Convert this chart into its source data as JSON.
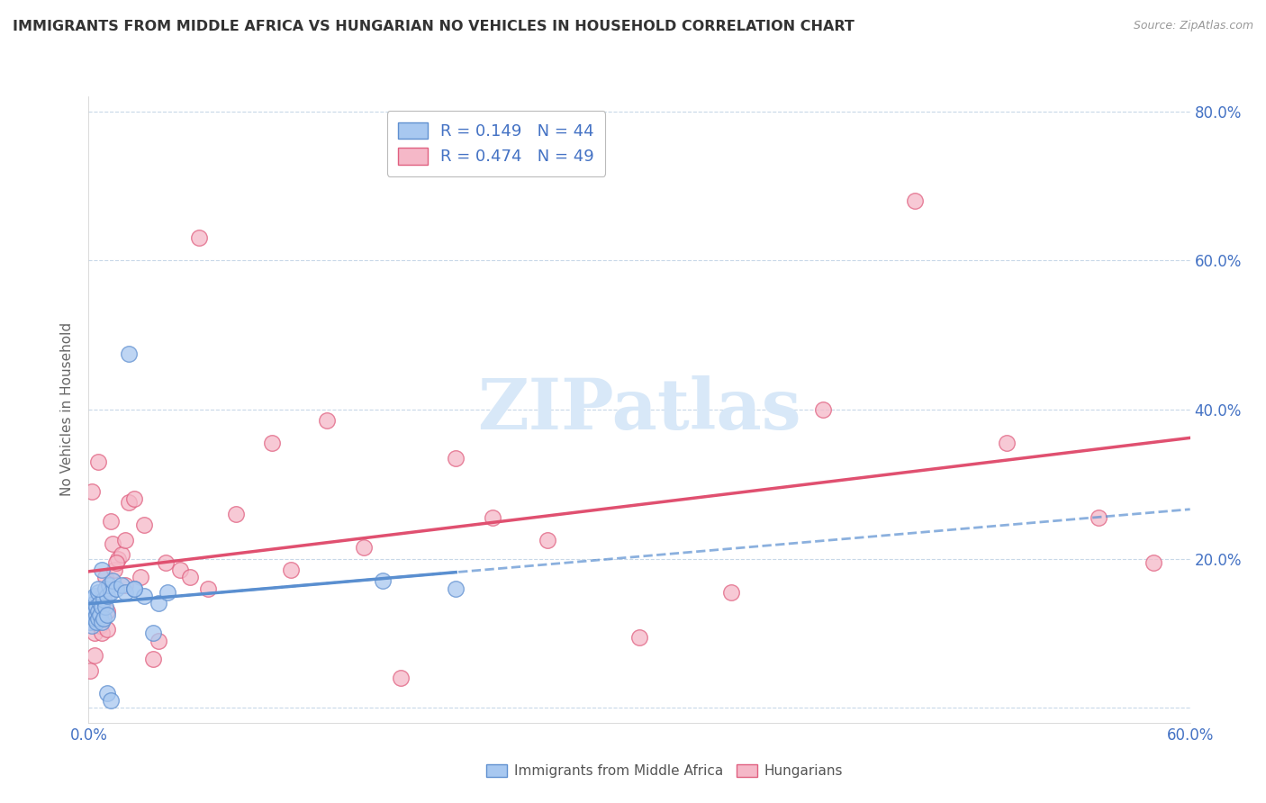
{
  "title": "IMMIGRANTS FROM MIDDLE AFRICA VS HUNGARIAN NO VEHICLES IN HOUSEHOLD CORRELATION CHART",
  "source": "Source: ZipAtlas.com",
  "ylabel": "No Vehicles in Household",
  "xlim": [
    0.0,
    0.6
  ],
  "ylim": [
    -0.02,
    0.82
  ],
  "xticks": [
    0.0,
    0.1,
    0.2,
    0.3,
    0.4,
    0.5,
    0.6
  ],
  "yticks": [
    0.0,
    0.2,
    0.4,
    0.6,
    0.8
  ],
  "xtick_labels": [
    "0.0%",
    "",
    "",
    "",
    "",
    "",
    "60.0%"
  ],
  "ytick_labels_right": [
    "",
    "20.0%",
    "40.0%",
    "60.0%",
    "80.0%"
  ],
  "blue_label": "Immigrants from Middle Africa",
  "pink_label": "Hungarians",
  "blue_R": "0.149",
  "blue_N": "44",
  "pink_R": "0.474",
  "pink_N": "49",
  "blue_color": "#a8c8f0",
  "pink_color": "#f5b8c8",
  "blue_edge_color": "#6090d0",
  "pink_edge_color": "#e06080",
  "blue_line_color": "#5a8fd0",
  "pink_line_color": "#e05070",
  "watermark_color": "#d8e8f8",
  "title_color": "#333333",
  "axis_label_color": "#4472c4",
  "grid_color": "#c8d8e8",
  "blue_scatter_x": [
    0.001,
    0.001,
    0.001,
    0.002,
    0.002,
    0.002,
    0.003,
    0.003,
    0.003,
    0.004,
    0.004,
    0.004,
    0.005,
    0.005,
    0.005,
    0.006,
    0.006,
    0.007,
    0.007,
    0.008,
    0.008,
    0.009,
    0.009,
    0.01,
    0.01,
    0.011,
    0.012,
    0.013,
    0.015,
    0.018,
    0.02,
    0.022,
    0.025,
    0.03,
    0.035,
    0.038,
    0.043,
    0.16,
    0.025,
    0.01,
    0.005,
    0.007,
    0.012,
    0.2
  ],
  "blue_scatter_y": [
    0.125,
    0.135,
    0.115,
    0.13,
    0.145,
    0.11,
    0.12,
    0.14,
    0.15,
    0.125,
    0.135,
    0.115,
    0.13,
    0.12,
    0.155,
    0.14,
    0.125,
    0.135,
    0.115,
    0.145,
    0.12,
    0.135,
    0.16,
    0.15,
    0.125,
    0.165,
    0.155,
    0.17,
    0.16,
    0.165,
    0.155,
    0.475,
    0.16,
    0.15,
    0.1,
    0.14,
    0.155,
    0.17,
    0.16,
    0.02,
    0.16,
    0.185,
    0.01,
    0.16
  ],
  "pink_scatter_x": [
    0.001,
    0.002,
    0.003,
    0.003,
    0.004,
    0.005,
    0.005,
    0.006,
    0.007,
    0.008,
    0.009,
    0.01,
    0.01,
    0.012,
    0.013,
    0.014,
    0.016,
    0.018,
    0.02,
    0.022,
    0.025,
    0.028,
    0.03,
    0.035,
    0.038,
    0.042,
    0.05,
    0.055,
    0.06,
    0.065,
    0.08,
    0.1,
    0.11,
    0.13,
    0.15,
    0.17,
    0.2,
    0.22,
    0.25,
    0.3,
    0.35,
    0.4,
    0.45,
    0.5,
    0.55,
    0.58,
    0.02,
    0.015,
    0.008
  ],
  "pink_scatter_y": [
    0.05,
    0.29,
    0.1,
    0.07,
    0.12,
    0.33,
    0.12,
    0.11,
    0.1,
    0.145,
    0.175,
    0.13,
    0.105,
    0.25,
    0.22,
    0.185,
    0.2,
    0.205,
    0.225,
    0.275,
    0.28,
    0.175,
    0.245,
    0.065,
    0.09,
    0.195,
    0.185,
    0.175,
    0.63,
    0.16,
    0.26,
    0.355,
    0.185,
    0.385,
    0.215,
    0.04,
    0.335,
    0.255,
    0.225,
    0.095,
    0.155,
    0.4,
    0.68,
    0.355,
    0.255,
    0.195,
    0.165,
    0.195,
    0.155
  ]
}
